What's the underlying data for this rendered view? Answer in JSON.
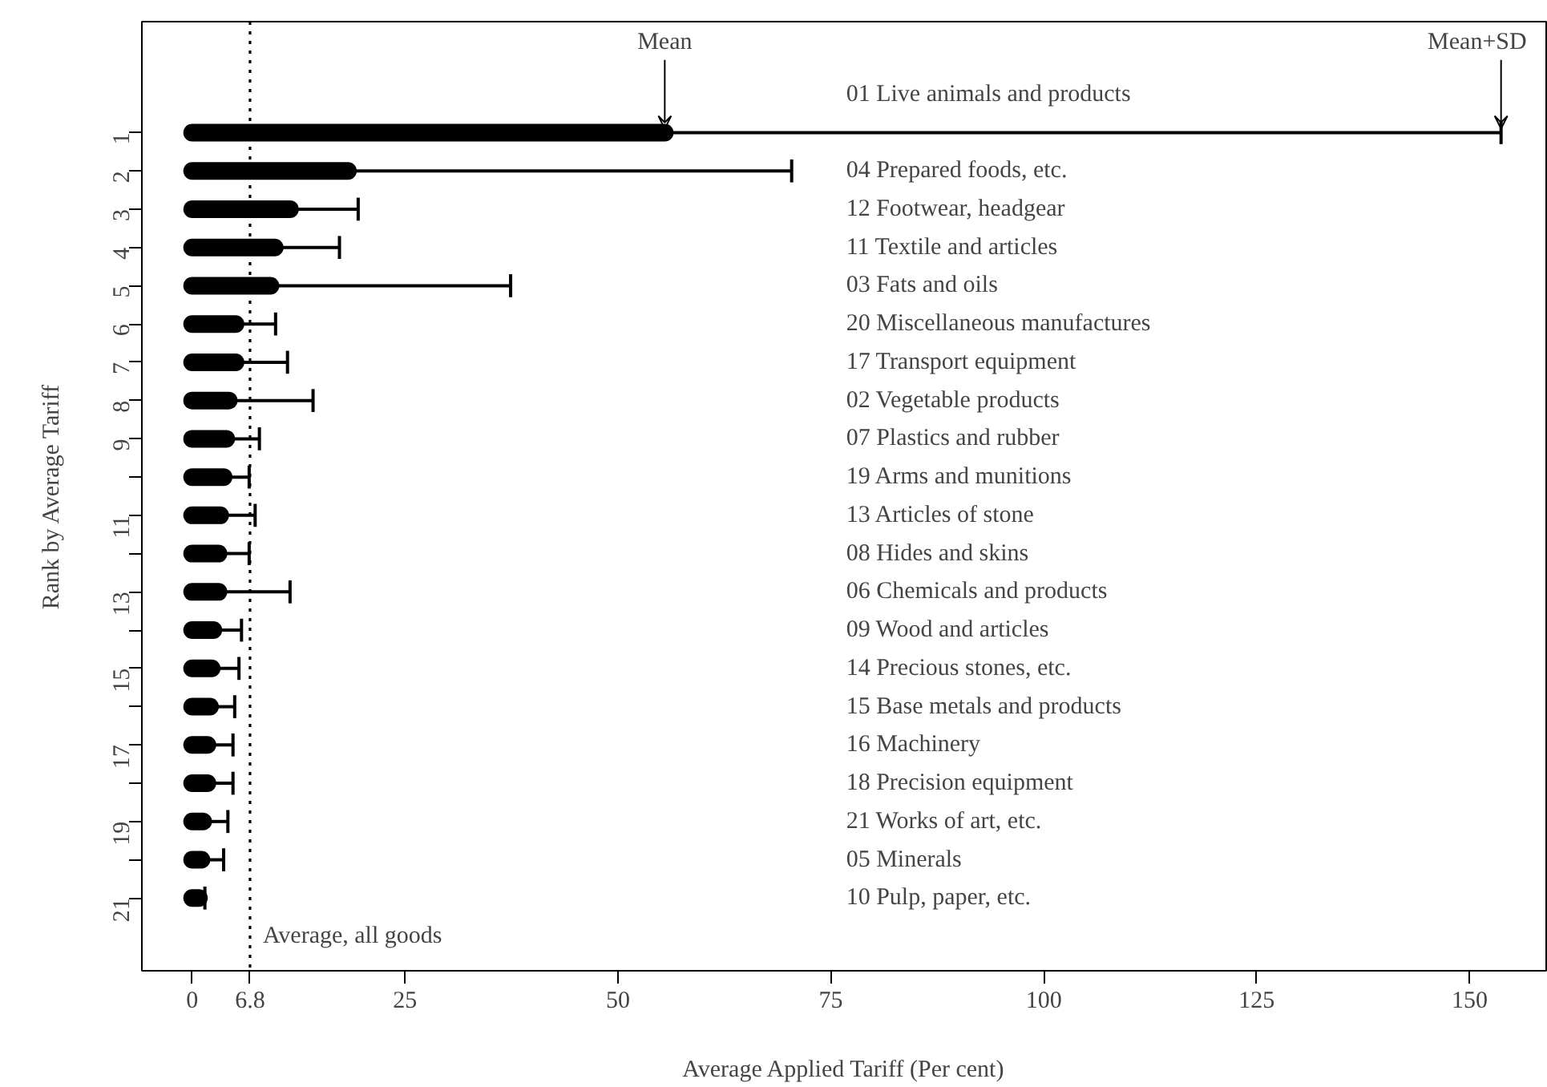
{
  "chart_data": {
    "type": "bar",
    "orientation": "horizontal",
    "xlabel": "Average Applied Tariff (Per cent)",
    "ylabel": "Rank by Average Tariff",
    "categories": [
      "1",
      "2",
      "3",
      "4",
      "5",
      "6",
      "7",
      "8",
      "9",
      null,
      "11",
      null,
      "13",
      null,
      "15",
      null,
      "17",
      null,
      "19",
      null,
      "21"
    ],
    "values": [
      55.5,
      18.3,
      11.5,
      9.7,
      9.2,
      5.1,
      5.1,
      4.3,
      4.0,
      3.7,
      3.3,
      3.1,
      3.1,
      2.5,
      2.3,
      2.1,
      1.8,
      1.8,
      1.3,
      1.1,
      0.8
    ],
    "errors": [
      [
        55.5,
        153.7
      ],
      [
        18.3,
        70.4
      ],
      [
        11.5,
        19.5
      ],
      [
        9.7,
        17.3
      ],
      [
        9.2,
        37.4
      ],
      [
        5.1,
        9.8
      ],
      [
        5.1,
        11.2
      ],
      [
        4.3,
        14.2
      ],
      [
        4.0,
        7.9
      ],
      [
        3.7,
        6.7
      ],
      [
        3.3,
        7.4
      ],
      [
        3.1,
        6.7
      ],
      [
        3.1,
        11.5
      ],
      [
        2.5,
        5.8
      ],
      [
        2.3,
        5.5
      ],
      [
        2.1,
        5.0
      ],
      [
        1.8,
        4.8
      ],
      [
        1.8,
        4.8
      ],
      [
        1.3,
        4.2
      ],
      [
        1.1,
        3.7
      ],
      [
        0.8,
        1.5
      ]
    ],
    "color": "#000000",
    "xlim": [
      -5.9,
      159.0
    ],
    "xticks": [
      0,
      6.8,
      25,
      50,
      75,
      100,
      125,
      150
    ],
    "ref_lines": [
      {
        "axis": "x",
        "value": 6.8,
        "label": "Average, all goods",
        "line_style": "dotted",
        "color": "#000000"
      }
    ],
    "annotations": [
      {
        "text": "Mean",
        "x": 55.5,
        "y": "1"
      },
      {
        "text": "Mean+SD",
        "x": 153.7,
        "y": "1"
      },
      "01 Live animals and products",
      "04 Prepared foods, etc.",
      "12 Footwear, headgear",
      "11 Textile and articles",
      "03 Fats and oils",
      "20 Miscellaneous manufactures",
      "17 Transport equipment",
      "02 Vegetable products",
      "07 Plastics and rubber",
      "19 Arms and munitions",
      "13 Articles of stone",
      "08 Hides and skins",
      "06 Chemicals and products",
      "09 Wood and articles",
      "14 Precious stones, etc.",
      "15 Base metals and products",
      "16 Machinery",
      "18 Precision equipment",
      "21 Works of art, etc.",
      "05 Minerals",
      "10 Pulp, paper, etc."
    ],
    "grid": false
  }
}
